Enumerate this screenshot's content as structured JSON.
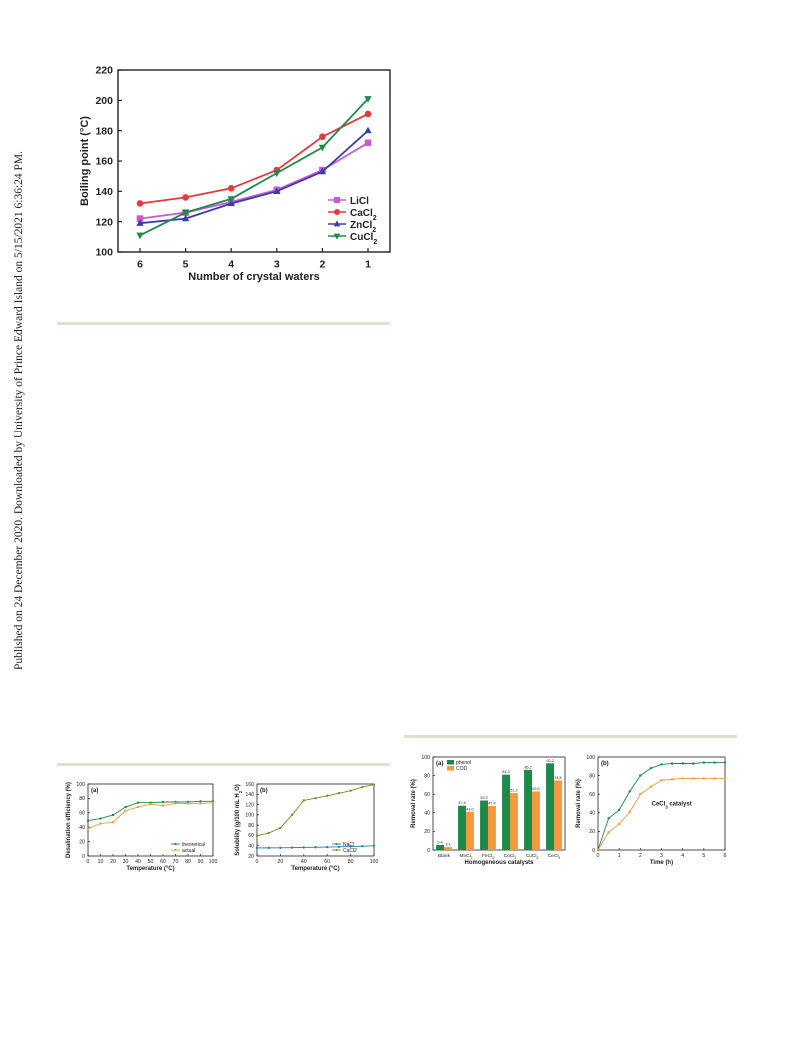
{
  "sidebar": {
    "published": "Published on 24 December 2020. Downloaded by University of Prince Edward Island on 5/15/2021 6:36:24 PM."
  },
  "charts": {
    "boiling": {
      "chart_data": {
        "type": "line",
        "xlabel": "Number of crystal waters",
        "ylabel": "Boiling point (°C)",
        "categories": [
          "6",
          "5",
          "4",
          "3",
          "2",
          "1"
        ],
        "ylim": [
          100,
          220
        ],
        "yticks": [
          "100",
          "120",
          "140",
          "160",
          "180",
          "200",
          "220"
        ],
        "legend": "bottom-right",
        "series": [
          {
            "name": "LiCl",
            "color": "#c95bd1",
            "marker": "square",
            "values": [
              122,
              126,
              133,
              141,
              154,
              172
            ]
          },
          {
            "name": "CaCl",
            "sub": "2",
            "color": "#e23b3b",
            "marker": "circle",
            "values": [
              132,
              136,
              142,
              154,
              176,
              191
            ]
          },
          {
            "name": "ZnCl",
            "sub": "2",
            "color": "#3a3dab",
            "marker": "triangle-up",
            "values": [
              119,
              122,
              132,
              140,
              153,
              180
            ]
          },
          {
            "name": "CuCl",
            "sub": "2",
            "color": "#1d8a4a",
            "marker": "triangle-down",
            "values": [
              111,
              126,
              135,
              152,
              169,
              201
            ]
          }
        ]
      }
    },
    "desal": {
      "chart_data": {
        "type": "line",
        "panel": "(a)",
        "xlabel": "Temperature (°C)",
        "ylabel": "Desalination efficiency (%)",
        "xlim": [
          0,
          100
        ],
        "ylim": [
          0,
          100
        ],
        "xticks": [
          "0",
          "10",
          "20",
          "30",
          "40",
          "50",
          "60",
          "70",
          "80",
          "90",
          "100"
        ],
        "yticks": [
          "0",
          "20",
          "40",
          "60",
          "80",
          "100"
        ],
        "legend": "bottom-right",
        "series": [
          {
            "name": "theoretical",
            "color": "#1d8a4a",
            "x": [
              0,
              10,
              20,
              30,
              40,
              50,
              60,
              70,
              80,
              90,
              100
            ],
            "values": [
              49,
              52,
              57,
              68,
              74,
              74,
              75,
              75,
              75,
              76,
              76
            ]
          },
          {
            "name": "actual",
            "color": "#f39a3c",
            "x": [
              0,
              10,
              20,
              30,
              40,
              50,
              60,
              70,
              80,
              90,
              100
            ],
            "values": [
              38,
              45,
              47,
              63,
              68,
              72,
              70,
              73,
              73,
              73,
              74
            ]
          }
        ]
      }
    },
    "solub": {
      "chart_data": {
        "type": "line",
        "panel": "(b)",
        "xlabel": "Temperature (°C)",
        "ylabel": "Solubility (g/100 mL H",
        "ylabel_sub": "2",
        "ylabel_end": "O)",
        "xlim": [
          0,
          100
        ],
        "ylim": [
          20,
          160
        ],
        "xticks": [
          "0",
          "20",
          "40",
          "60",
          "80",
          "100"
        ],
        "yticks": [
          "20",
          "40",
          "60",
          "80",
          "100",
          "120",
          "140",
          "160"
        ],
        "legend": "bottom-right",
        "series": [
          {
            "name": "NaCl",
            "color": "#2d7fa3",
            "x": [
              0,
              10,
              20,
              30,
              40,
              50,
              60,
              70,
              80,
              90,
              100
            ],
            "values": [
              35.7,
              35.8,
              36.0,
              36.3,
              36.6,
              37.0,
              37.3,
              37.8,
              38.4,
              39.0,
              39.8
            ]
          },
          {
            "name": "CaCl2",
            "color": "#7d8a2a",
            "x": [
              0,
              10,
              20,
              30,
              40,
              50,
              60,
              70,
              80,
              90,
              100
            ],
            "values": [
              59.5,
              64.7,
              74.5,
              100,
              128,
              132.5,
              137,
              142,
              147,
              154,
              159
            ]
          }
        ]
      }
    },
    "removal_bar": {
      "chart_data": {
        "type": "bar",
        "panel": "(a)",
        "xlabel": "Homogeneous catalysts",
        "ylabel": "Removal rate (%)",
        "ylim": [
          0,
          100
        ],
        "yticks": [
          "0",
          "20",
          "40",
          "60",
          "80",
          "100"
        ],
        "legend": "top-left",
        "categories": [
          "Blank",
          "MnCl",
          "FeCl",
          "CoCl",
          "CuCl",
          "CeCl"
        ],
        "category_subs": [
          "",
          "2",
          "3",
          "2",
          "2",
          "3"
        ],
        "series": [
          {
            "name": "phenol",
            "color": "#1d8a4a",
            "values": [
              5.4,
              47.6,
              53.2,
              81.0,
              86.2,
              93.2
            ],
            "labels": [
              "5.4",
              "47.6",
              "53.2",
              "81.0",
              "86.2",
              "93.2"
            ]
          },
          {
            "name": "COD",
            "color": "#f39a3c",
            "values": [
              3.1,
              41.0,
              47.4,
              61.2,
              63.0,
              74.8
            ],
            "labels": [
              "3.1",
              "41.0",
              "47.4",
              "61.2",
              "63.0",
              "74.8"
            ]
          }
        ]
      }
    },
    "removal_time": {
      "chart_data": {
        "type": "line",
        "panel": "(b)",
        "annotation": "CeCl",
        "annotation_sub": "3",
        "annotation_end": " catalyst",
        "xlabel": "Time (h)",
        "ylabel": "Removal rate (%)",
        "xlim": [
          0,
          6
        ],
        "ylim": [
          0,
          100
        ],
        "xticks": [
          "0",
          "1",
          "2",
          "3",
          "4",
          "5",
          "6"
        ],
        "yticks": [
          "0",
          "20",
          "40",
          "60",
          "80",
          "100"
        ],
        "series": [
          {
            "name": "",
            "color": "#1d8a4a",
            "x": [
              0,
              0.5,
              1,
              1.5,
              2,
              2.5,
              3,
              3.5,
              4,
              4.5,
              5,
              5.5,
              6
            ],
            "values": [
              0,
              34,
              43,
              63,
              80,
              88,
              92,
              93,
              93,
              93,
              94,
              94,
              94
            ]
          },
          {
            "name": "",
            "color": "#f39a3c",
            "x": [
              0,
              0.5,
              1,
              1.5,
              2,
              2.5,
              3,
              3.5,
              4,
              4.5,
              5,
              5.5,
              6
            ],
            "values": [
              0,
              19,
              28,
              41,
              60,
              68,
              75,
              76,
              77,
              77,
              77,
              77,
              77
            ]
          }
        ]
      }
    }
  }
}
